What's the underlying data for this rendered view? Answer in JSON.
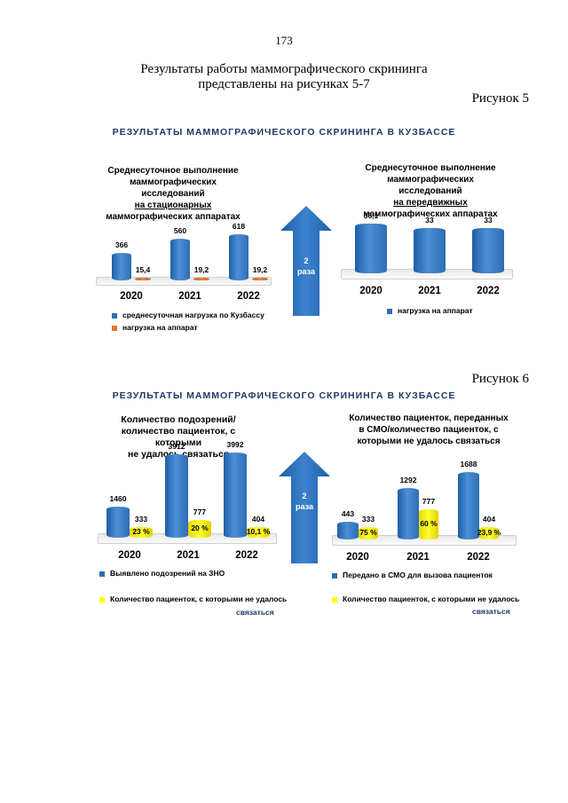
{
  "page_number": "173",
  "intro": {
    "line1": "Результаты работы маммографического скрининга",
    "line2": "представлены на рисунках 5-7"
  },
  "figures": [
    {
      "label": "Рисунок 5",
      "banner": "РЕЗУЛЬТАТЫ МАММОГРАФИЧЕСКОГО СКРИНИНГА В КУЗБАССЕ",
      "arrow_label": "2\nраза"
    },
    {
      "label": "Рисунок 6",
      "banner": "РЕЗУЛЬТАТЫ МАММОГРАФИЧЕСКОГО СКРИНИНГА В КУЗБАССЕ",
      "arrow_label": "2\nраза"
    }
  ],
  "colors": {
    "blue": "#2e6db3",
    "orange": "#e8742f",
    "yellow": "#ffff00",
    "banner": "#1f3864"
  },
  "chart_data": [
    {
      "type": "bar",
      "title_lines": [
        "Среднесуточное выполнение",
        "маммографических исследований"
      ],
      "title_underlined": "на стационарных",
      "title_last": "маммографических аппаратах",
      "categories": [
        "2020",
        "2021",
        "2022"
      ],
      "series": [
        {
          "name": "среднесуточная нагрузка по Кузбассу",
          "values": [
            366,
            560,
            618
          ],
          "labels": [
            "366",
            "560",
            "618"
          ],
          "color": "#2e6db3"
        },
        {
          "name": "нагрузка на аппарат",
          "values": [
            15.4,
            19.2,
            19.2
          ],
          "labels": [
            "15,4",
            "19,2",
            "19,2"
          ],
          "color": "#e8742f"
        }
      ],
      "legend": [
        "среднесуточная нагрузка по Кузбассу",
        "нагрузка на аппарат"
      ]
    },
    {
      "type": "bar",
      "title_lines": [
        "Среднесуточное выполнение",
        "маммографических исследований"
      ],
      "title_underlined": "на передвижных",
      "title_last": "маммографических аппаратах",
      "categories": [
        "2020",
        "2021",
        "2022"
      ],
      "series": [
        {
          "name": "нагрузка на аппарат",
          "values": [
            36.1,
            33,
            33
          ],
          "labels": [
            "36,1",
            "33",
            "33"
          ],
          "color": "#2e6db3"
        }
      ],
      "legend": [
        "нагрузка на аппарат"
      ]
    },
    {
      "type": "bar",
      "title_lines": [
        "Количество подозрений/",
        "количество пациенток, с которыми",
        "не удалось связаться"
      ],
      "categories": [
        "2020",
        "2021",
        "2022"
      ],
      "series": [
        {
          "name": "Выявлено подозрений на ЗНО",
          "values": [
            1460,
            3912,
            3992
          ],
          "labels": [
            "1460",
            "3912",
            "3992"
          ],
          "color": "#2e6db3"
        },
        {
          "name": "Количество пациенток, с которыми не удалось связаться",
          "values": [
            333,
            777,
            404
          ],
          "labels": [
            "333",
            "777",
            "404"
          ],
          "percent_labels": [
            "23 %",
            "20 %",
            "10,1 %"
          ],
          "color": "#ffff00"
        }
      ],
      "legend": [
        "Выявлено подозрений на ЗНО",
        "Количество пациенток, с которыми не удалось"
      ],
      "legend_wrap": "связаться"
    },
    {
      "type": "bar",
      "title_lines": [
        "Количество пациенток, переданных",
        "в СМО/количество пациенток, с",
        "которыми не удалось связаться"
      ],
      "categories": [
        "2020",
        "2021",
        "2022"
      ],
      "series": [
        {
          "name": "Передано в СМО для вызова пациенток",
          "values": [
            443,
            1292,
            1688
          ],
          "labels": [
            "443",
            "1292",
            "1688"
          ],
          "color": "#2e6db3"
        },
        {
          "name": "Количество пациенток, с которыми не удалось связаться",
          "values": [
            333,
            777,
            404
          ],
          "labels": [
            "333",
            "777",
            "404"
          ],
          "percent_labels": [
            "75 %",
            "60 %",
            "23,9 %"
          ],
          "color": "#ffff00"
        }
      ],
      "legend": [
        "Передано в СМО для вызова пациенток",
        "Количество пациенток, с которыми не удалось"
      ],
      "legend_wrap": "связаться"
    }
  ]
}
